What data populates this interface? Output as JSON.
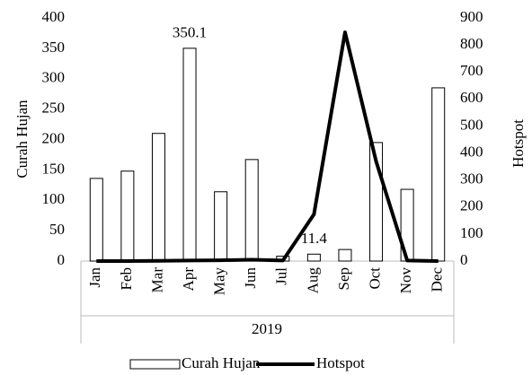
{
  "chart_data": {
    "type": "bar_line",
    "categories": [
      "Jan",
      "Feb",
      "Mar",
      "Apr",
      "May",
      "Jun",
      "Jul",
      "Aug",
      "Sep",
      "Oct",
      "Nov",
      "Dec"
    ],
    "group_label": "2019",
    "series": [
      {
        "name": "Curah Hujan",
        "type": "bar",
        "color": "#ffffff",
        "values": [
          136,
          148,
          210,
          350.1,
          114,
          167,
          8,
          11.4,
          19,
          195,
          118,
          285
        ],
        "value_labels": [
          null,
          null,
          null,
          "350.1",
          null,
          null,
          null,
          "11.4",
          null,
          null,
          null,
          null
        ]
      },
      {
        "name": "Hotspot",
        "type": "line",
        "axis": "y2",
        "color": "#000000",
        "values": [
          0,
          0,
          1,
          2,
          3,
          5,
          2,
          173,
          847,
          369,
          2,
          0
        ]
      }
    ],
    "ylabel": "Curah Hujan",
    "y2label": "Hotspot",
    "ylim": [
      0,
      400
    ],
    "yticks": [
      0,
      50,
      100,
      150,
      200,
      250,
      300,
      350,
      400
    ],
    "y2lim": [
      0,
      900
    ],
    "y2ticks": [
      0,
      100,
      200,
      300,
      400,
      500,
      600,
      700,
      800,
      900
    ],
    "legend": "bottom"
  }
}
